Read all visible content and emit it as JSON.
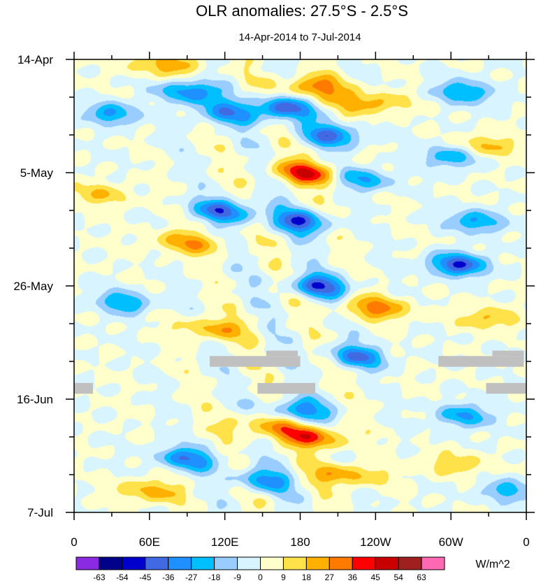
{
  "chart_data": {
    "type": "heatmap",
    "title": "OLR anomalies: 27.5°S - 2.5°S",
    "subtitle": "14-Apr-2014 to 7-Jul-2014",
    "units": "W/m^2",
    "x_ticks": [
      {
        "lon": 0,
        "label": "0"
      },
      {
        "lon": 60,
        "label": "60E"
      },
      {
        "lon": 120,
        "label": "120E"
      },
      {
        "lon": 180,
        "label": "180"
      },
      {
        "lon": 240,
        "label": "120W"
      },
      {
        "lon": 300,
        "label": "60W"
      },
      {
        "lon": 360,
        "label": "0"
      }
    ],
    "x_range": [
      0,
      360
    ],
    "y_ticks": [
      {
        "day": 0,
        "label": "14-Apr"
      },
      {
        "day": 21,
        "label": "5-May"
      },
      {
        "day": 42,
        "label": "26-May"
      },
      {
        "day": 63,
        "label": "16-Jun"
      },
      {
        "day": 84,
        "label": "7-Jul"
      }
    ],
    "y_range": [
      0,
      84
    ],
    "levels": [
      -63,
      -54,
      -45,
      -36,
      -27,
      -18,
      -9,
      0,
      9,
      18,
      27,
      36,
      45,
      54,
      63
    ],
    "colors": [
      "#8a2be2",
      "#00008b",
      "#0000cd",
      "#4169e1",
      "#1e90ff",
      "#00bfff",
      "#99ccff",
      "#d8f4ff",
      "#ffffcc",
      "#ffe14a",
      "#ffb000",
      "#ff7a00",
      "#ff0000",
      "#c80000",
      "#a02020",
      "#ff69b4"
    ],
    "missing_color": "#c0c0c0",
    "missing_segments": [
      {
        "lon0": 108,
        "lon1": 180,
        "day0": 55,
        "day1": 57
      },
      {
        "lon0": 153,
        "lon1": 178,
        "day0": 54,
        "day1": 55
      },
      {
        "lon0": 0,
        "lon1": 15,
        "day0": 60,
        "day1": 62
      },
      {
        "lon0": 146,
        "lon1": 192,
        "day0": 60,
        "day1": 62
      },
      {
        "lon0": 290,
        "lon1": 358,
        "day0": 55,
        "day1": 57
      },
      {
        "lon0": 333,
        "lon1": 358,
        "day0": 54,
        "day1": 55
      },
      {
        "lon0": 328,
        "lon1": 360,
        "day0": 60,
        "day1": 62
      }
    ],
    "features": [
      {
        "lon": 72,
        "day": 1,
        "amp": 22,
        "r": 30,
        "drift": 2.3
      },
      {
        "lon": 92,
        "day": 6,
        "amp": -38,
        "r": 22,
        "drift": 2.3
      },
      {
        "lon": 120,
        "day": 10,
        "amp": -30,
        "r": 24,
        "drift": 2.3
      },
      {
        "lon": 165,
        "day": 9,
        "amp": -45,
        "r": 22,
        "drift": 2.3
      },
      {
        "lon": 190,
        "day": 5,
        "amp": 30,
        "r": 26,
        "drift": 2.3
      },
      {
        "lon": 205,
        "day": 14,
        "amp": -36,
        "r": 24,
        "drift": 2.3
      },
      {
        "lon": 235,
        "day": 8,
        "amp": 24,
        "r": 28,
        "drift": 2.3
      },
      {
        "lon": 185,
        "day": 21,
        "amp": 42,
        "r": 26,
        "drift": 2.3
      },
      {
        "lon": 230,
        "day": 22,
        "amp": -30,
        "r": 22,
        "drift": 2.3
      },
      {
        "lon": 120,
        "day": 28,
        "amp": -40,
        "r": 24,
        "drift": 2.3
      },
      {
        "lon": 180,
        "day": 30,
        "amp": -42,
        "r": 22,
        "drift": 2.3
      },
      {
        "lon": 90,
        "day": 34,
        "amp": 24,
        "r": 28,
        "drift": 2.3
      },
      {
        "lon": 195,
        "day": 42,
        "amp": -44,
        "r": 22,
        "drift": 2.3
      },
      {
        "lon": 240,
        "day": 46,
        "amp": 30,
        "r": 26,
        "drift": 2.3
      },
      {
        "lon": 110,
        "day": 50,
        "amp": 24,
        "r": 26,
        "drift": 2.3
      },
      {
        "lon": 225,
        "day": 55,
        "amp": -36,
        "r": 22,
        "drift": 2.3
      },
      {
        "lon": 150,
        "day": 68,
        "amp": 22,
        "r": 30,
        "drift": 2.3
      },
      {
        "lon": 190,
        "day": 70,
        "amp": 36,
        "r": 26,
        "drift": 2.3
      },
      {
        "lon": 180,
        "day": 65,
        "amp": -32,
        "r": 24,
        "drift": 2.3
      },
      {
        "lon": 90,
        "day": 74,
        "amp": -34,
        "r": 24,
        "drift": 2.3
      },
      {
        "lon": 150,
        "day": 78,
        "amp": -32,
        "r": 22,
        "drift": 2.3
      },
      {
        "lon": 60,
        "day": 80,
        "amp": 22,
        "r": 26,
        "drift": 2.3
      },
      {
        "lon": 215,
        "day": 77,
        "amp": 26,
        "r": 28,
        "drift": 2.3
      },
      {
        "lon": 30,
        "day": 10,
        "amp": -30,
        "r": 20,
        "drift": 1.8
      },
      {
        "lon": 40,
        "day": 45,
        "amp": -30,
        "r": 20,
        "drift": 1.8
      },
      {
        "lon": 20,
        "day": 25,
        "amp": 18,
        "r": 24,
        "drift": 1.8
      },
      {
        "lon": 310,
        "day": 6,
        "amp": -30,
        "r": 22,
        "drift": 1.2
      },
      {
        "lon": 300,
        "day": 18,
        "amp": -26,
        "r": 22,
        "drift": 1.2
      },
      {
        "lon": 305,
        "day": 38,
        "amp": -46,
        "r": 22,
        "drift": 1.2
      },
      {
        "lon": 320,
        "day": 30,
        "amp": -28,
        "r": 22,
        "drift": 1.2
      },
      {
        "lon": 330,
        "day": 16,
        "amp": 20,
        "r": 24,
        "drift": 1.2
      },
      {
        "lon": 330,
        "day": 48,
        "amp": 18,
        "r": 26,
        "drift": 1.2
      },
      {
        "lon": 310,
        "day": 66,
        "amp": -28,
        "r": 22,
        "drift": 1.2
      },
      {
        "lon": 300,
        "day": 75,
        "amp": 16,
        "r": 26,
        "drift": 1.2
      },
      {
        "lon": 345,
        "day": 80,
        "amp": -24,
        "r": 20,
        "drift": 1.2
      }
    ]
  }
}
